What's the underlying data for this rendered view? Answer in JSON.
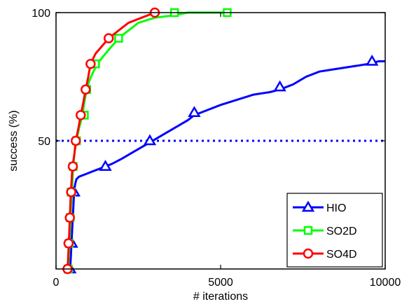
{
  "chart_data": {
    "type": "line",
    "xlabel": "# iterations",
    "ylabel": "success (%)",
    "xlim": [
      0,
      10000
    ],
    "ylim": [
      0,
      100
    ],
    "x_ticks": [
      0,
      5000,
      10000
    ],
    "y_ticks": [
      50,
      100
    ],
    "x_tick_labels": [
      "0",
      "5000",
      "10000"
    ],
    "y_tick_labels": [
      "50",
      "100"
    ],
    "grid": false,
    "legend_position": "bottom-right",
    "reference_line": {
      "y": 50,
      "style": "dotted",
      "color": "#0000ff"
    },
    "series": [
      {
        "name": "HIO",
        "color": "#0000ff",
        "marker": "triangle",
        "curve": [
          [
            430,
            0
          ],
          [
            450,
            5
          ],
          [
            470,
            10
          ],
          [
            490,
            15
          ],
          [
            510,
            20
          ],
          [
            530,
            25
          ],
          [
            550,
            30
          ],
          [
            580,
            33
          ],
          [
            620,
            35
          ],
          [
            700,
            36
          ],
          [
            900,
            37
          ],
          [
            1100,
            38
          ],
          [
            1300,
            39
          ],
          [
            1500,
            40
          ],
          [
            1700,
            41
          ],
          [
            2000,
            43
          ],
          [
            2400,
            46
          ],
          [
            2800,
            49
          ],
          [
            3200,
            52
          ],
          [
            3600,
            55
          ],
          [
            4000,
            58
          ],
          [
            4200,
            60
          ],
          [
            4600,
            62
          ],
          [
            5000,
            64
          ],
          [
            5500,
            66
          ],
          [
            6000,
            68
          ],
          [
            6500,
            69
          ],
          [
            6800,
            70
          ],
          [
            7200,
            72
          ],
          [
            7600,
            75
          ],
          [
            8000,
            77
          ],
          [
            8500,
            78
          ],
          [
            9000,
            79
          ],
          [
            9500,
            80
          ],
          [
            9800,
            81
          ],
          [
            10000,
            81
          ]
        ],
        "markers": [
          [
            430,
            0
          ],
          [
            480,
            10
          ],
          [
            550,
            30
          ],
          [
            1500,
            40
          ],
          [
            2850,
            50
          ],
          [
            4200,
            61
          ],
          [
            6800,
            71
          ],
          [
            9600,
            81
          ]
        ]
      },
      {
        "name": "SO2D",
        "color": "#00ff00",
        "marker": "square",
        "curve": [
          [
            370,
            0
          ],
          [
            390,
            5
          ],
          [
            410,
            10
          ],
          [
            440,
            20
          ],
          [
            480,
            30
          ],
          [
            520,
            40
          ],
          [
            560,
            45
          ],
          [
            620,
            50
          ],
          [
            700,
            55
          ],
          [
            800,
            60
          ],
          [
            860,
            65
          ],
          [
            930,
            70
          ],
          [
            1000,
            73
          ],
          [
            1100,
            76
          ],
          [
            1250,
            80
          ],
          [
            1500,
            84
          ],
          [
            1700,
            87
          ],
          [
            1900,
            90
          ],
          [
            2200,
            93
          ],
          [
            2500,
            96
          ],
          [
            3000,
            98
          ],
          [
            3600,
            99
          ],
          [
            4000,
            100
          ],
          [
            5200,
            100
          ]
        ],
        "markers": [
          [
            370,
            0
          ],
          [
            400,
            10
          ],
          [
            430,
            20
          ],
          [
            460,
            30
          ],
          [
            520,
            40
          ],
          [
            620,
            50
          ],
          [
            860,
            60
          ],
          [
            930,
            70
          ],
          [
            1200,
            80
          ],
          [
            1900,
            90
          ],
          [
            3600,
            100
          ],
          [
            5200,
            100
          ]
        ]
      },
      {
        "name": "SO4D",
        "color": "#ff0000",
        "marker": "circle",
        "curve": [
          [
            350,
            0
          ],
          [
            370,
            5
          ],
          [
            390,
            10
          ],
          [
            420,
            20
          ],
          [
            450,
            30
          ],
          [
            500,
            40
          ],
          [
            560,
            45
          ],
          [
            600,
            50
          ],
          [
            680,
            55
          ],
          [
            750,
            60
          ],
          [
            830,
            65
          ],
          [
            900,
            70
          ],
          [
            980,
            75
          ],
          [
            1050,
            80
          ],
          [
            1200,
            84
          ],
          [
            1400,
            87
          ],
          [
            1600,
            90
          ],
          [
            1900,
            93
          ],
          [
            2200,
            96
          ],
          [
            2600,
            98
          ],
          [
            3000,
            100
          ]
        ],
        "markers": [
          [
            350,
            0
          ],
          [
            380,
            10
          ],
          [
            420,
            20
          ],
          [
            460,
            30
          ],
          [
            510,
            40
          ],
          [
            600,
            50
          ],
          [
            750,
            60
          ],
          [
            900,
            70
          ],
          [
            1050,
            80
          ],
          [
            1600,
            90
          ],
          [
            3000,
            100
          ]
        ]
      }
    ]
  }
}
